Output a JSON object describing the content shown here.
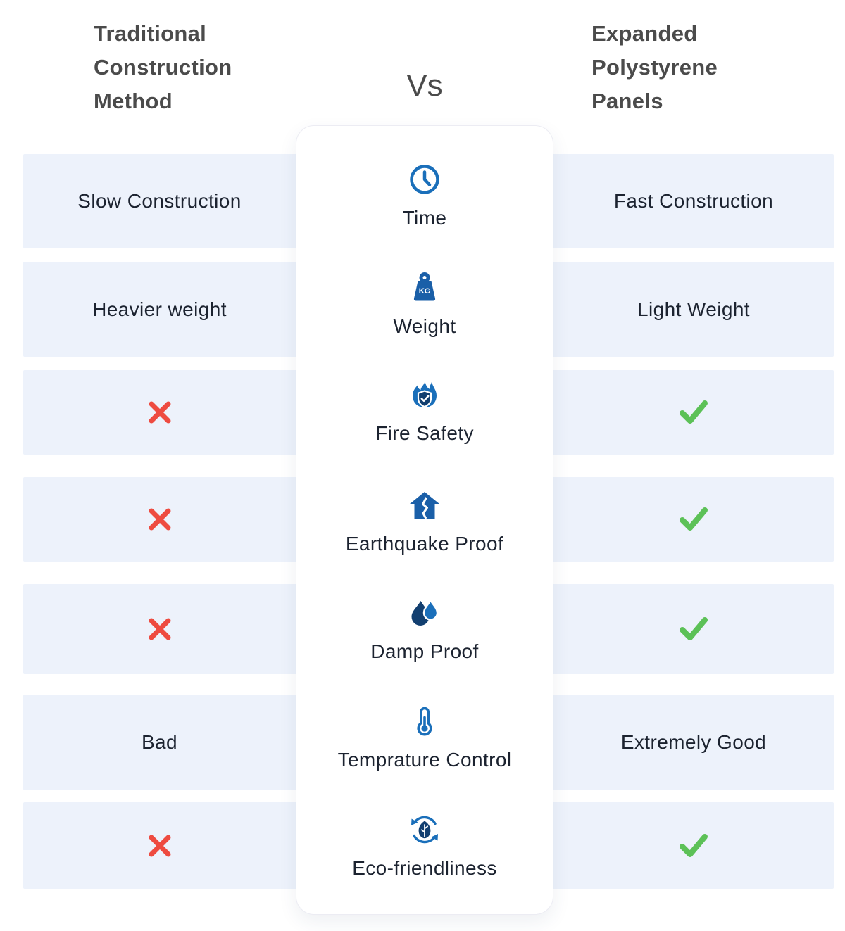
{
  "header": {
    "left_title": "Traditional Construction Method",
    "vs_label": "Vs",
    "right_title": "Expanded Polystyrene Panels"
  },
  "colors": {
    "row_background": "#edf2fb",
    "icon_blue": "#1a6fba",
    "icon_navy": "#123f70",
    "cross_red": "#ee4b40",
    "check_green": "#5cc157",
    "heading_gray": "#4b4b4b",
    "text_dark": "#1c2330"
  },
  "rows": [
    {
      "feature": "Time",
      "icon": "clock-icon",
      "left": {
        "type": "text",
        "value": "Slow Construction"
      },
      "right": {
        "type": "text",
        "value": "Fast Construction"
      }
    },
    {
      "feature": "Weight",
      "icon": "weight-kg-icon",
      "left": {
        "type": "text",
        "value": "Heavier weight"
      },
      "right": {
        "type": "text",
        "value": "Light Weight"
      }
    },
    {
      "feature": "Fire Safety",
      "icon": "fire-shield-icon",
      "left": {
        "type": "cross",
        "value": "no"
      },
      "right": {
        "type": "check",
        "value": "yes"
      }
    },
    {
      "feature": "Earthquake Proof",
      "icon": "cracked-house-icon",
      "left": {
        "type": "cross",
        "value": "no"
      },
      "right": {
        "type": "check",
        "value": "yes"
      }
    },
    {
      "feature": "Damp Proof",
      "icon": "water-drops-icon",
      "left": {
        "type": "cross",
        "value": "no"
      },
      "right": {
        "type": "check",
        "value": "yes"
      }
    },
    {
      "feature": "Temprature Control",
      "icon": "thermometer-icon",
      "left": {
        "type": "text",
        "value": "Bad"
      },
      "right": {
        "type": "text",
        "value": "Extremely Good"
      }
    },
    {
      "feature": "Eco-friendliness",
      "icon": "eco-recycle-leaf-icon",
      "left": {
        "type": "cross",
        "value": "no"
      },
      "right": {
        "type": "check",
        "value": "yes"
      }
    }
  ]
}
